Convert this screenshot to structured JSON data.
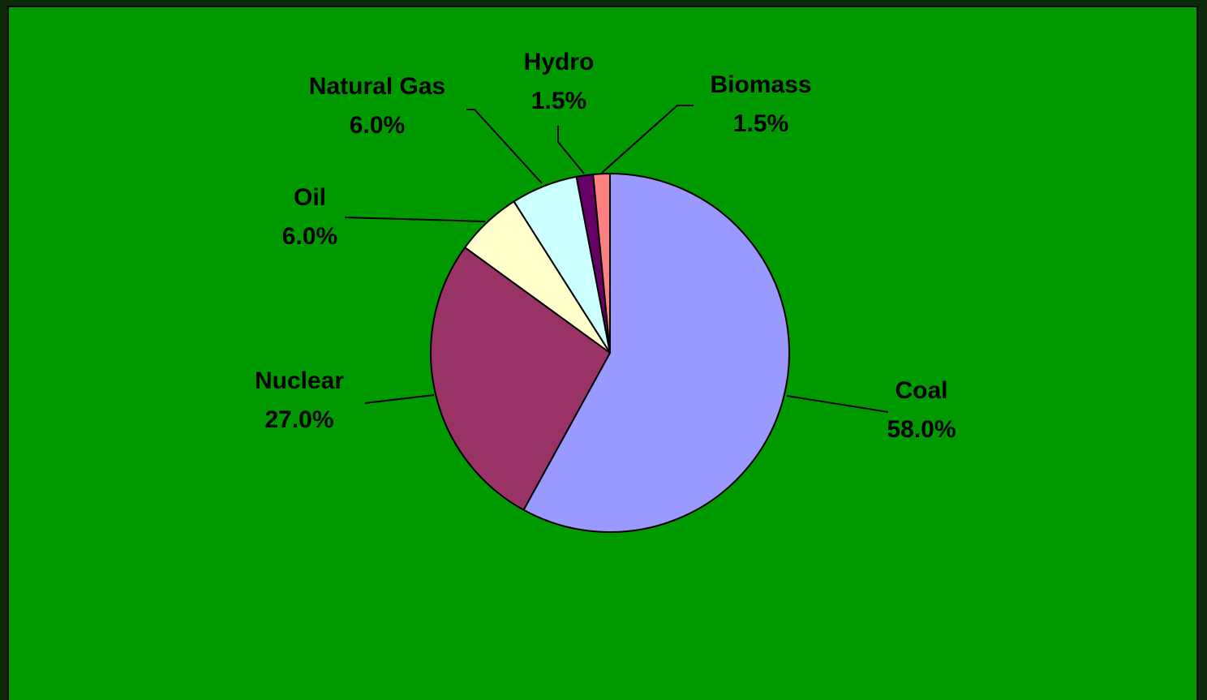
{
  "chart_data": {
    "type": "pie",
    "categories": [
      "Coal",
      "Nuclear",
      "Oil",
      "Natural Gas",
      "Hydro",
      "Biomass"
    ],
    "values": [
      58.0,
      27.0,
      6.0,
      6.0,
      1.5,
      1.5
    ],
    "value_labels": [
      "58.0%",
      "27.0%",
      "6.0%",
      "6.0%",
      "1.5%",
      "1.5%"
    ],
    "colors": [
      "#9999ff",
      "#993366",
      "#ffffcc",
      "#ccffff",
      "#660066",
      "#ff8080"
    ],
    "background": "#009900"
  }
}
